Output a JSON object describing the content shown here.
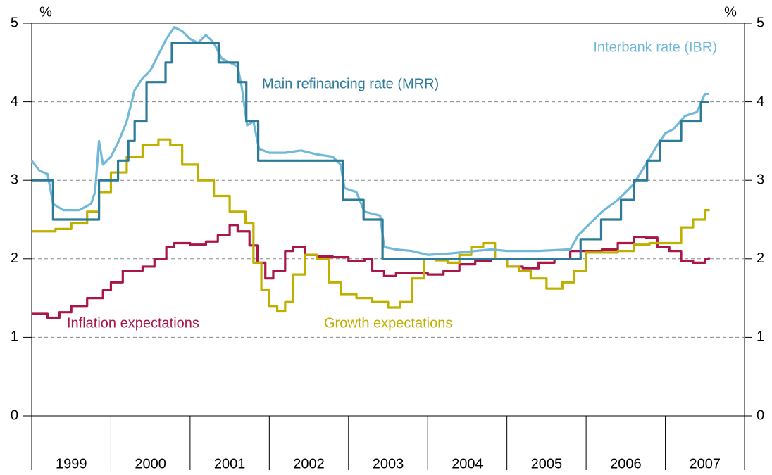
{
  "chart_data": {
    "type": "line",
    "y_unit_left": "%",
    "y_unit_right": "%",
    "xlim": [
      1999,
      2008
    ],
    "xticks": [
      1999,
      2000,
      2001,
      2002,
      2003,
      2004,
      2005,
      2006,
      2007,
      2008
    ],
    "x_band_labels": [
      "1999",
      "2000",
      "2001",
      "2002",
      "2003",
      "2004",
      "2005",
      "2006",
      "2007"
    ],
    "ylim": [
      0,
      5
    ],
    "yticks": [
      0,
      1,
      2,
      3,
      4,
      5
    ],
    "y2lim": [
      0,
      5
    ],
    "y2ticks": [
      0,
      1,
      2,
      3,
      4,
      5
    ],
    "grid": true,
    "series": [
      {
        "name": "Inflation expectations",
        "color": "#a8174a",
        "step": true,
        "x": [
          1999.0,
          1999.2,
          1999.35,
          1999.5,
          1999.7,
          1999.9,
          2000.0,
          2000.15,
          2000.4,
          2000.55,
          2000.7,
          2000.8,
          2001.0,
          2001.2,
          2001.35,
          2001.5,
          2001.6,
          2001.75,
          2001.85,
          2001.95,
          2002.05,
          2002.2,
          2002.3,
          2002.45,
          2002.6,
          2002.8,
          2003.0,
          2003.2,
          2003.3,
          2003.45,
          2003.6,
          2003.8,
          2004.0,
          2004.2,
          2004.4,
          2004.6,
          2004.8,
          2005.0,
          2005.2,
          2005.4,
          2005.6,
          2005.8,
          2006.0,
          2006.2,
          2006.4,
          2006.6,
          2006.75,
          2006.9,
          2007.05,
          2007.2,
          2007.35,
          2007.5,
          2007.55
        ],
        "values": [
          1.3,
          1.25,
          1.32,
          1.4,
          1.5,
          1.6,
          1.7,
          1.85,
          1.9,
          2.0,
          2.15,
          2.2,
          2.18,
          2.22,
          2.3,
          2.43,
          2.35,
          2.17,
          1.95,
          1.75,
          1.85,
          2.1,
          2.15,
          2.05,
          2.03,
          2.02,
          1.97,
          2.0,
          1.85,
          1.78,
          1.82,
          1.82,
          1.8,
          1.85,
          1.93,
          1.97,
          2.0,
          1.9,
          1.88,
          1.95,
          2.0,
          2.1,
          2.1,
          2.12,
          2.2,
          2.28,
          2.27,
          2.15,
          2.1,
          1.97,
          1.95,
          2.0,
          2.02
        ]
      },
      {
        "name": "Growth expectations",
        "color": "#bfb000",
        "step": true,
        "x": [
          1999.0,
          1999.3,
          1999.5,
          1999.7,
          1999.85,
          2000.0,
          2000.2,
          2000.4,
          2000.6,
          2000.75,
          2000.9,
          2001.1,
          2001.3,
          2001.5,
          2001.7,
          2001.8,
          2001.9,
          2002.0,
          2002.1,
          2002.2,
          2002.3,
          2002.45,
          2002.6,
          2002.75,
          2002.9,
          2003.1,
          2003.3,
          2003.5,
          2003.65,
          2003.8,
          2003.95,
          2004.1,
          2004.25,
          2004.4,
          2004.55,
          2004.7,
          2004.85,
          2005.0,
          2005.15,
          2005.3,
          2005.5,
          2005.7,
          2005.85,
          2006.0,
          2006.2,
          2006.4,
          2006.6,
          2006.8,
          2007.0,
          2007.2,
          2007.35,
          2007.5,
          2007.55
        ],
        "values": [
          2.35,
          2.38,
          2.45,
          2.6,
          2.85,
          3.1,
          3.3,
          3.45,
          3.52,
          3.45,
          3.2,
          3.0,
          2.8,
          2.6,
          2.45,
          1.95,
          1.6,
          1.4,
          1.33,
          1.45,
          1.8,
          2.05,
          2.0,
          1.7,
          1.55,
          1.5,
          1.45,
          1.38,
          1.45,
          1.75,
          2.0,
          1.98,
          1.95,
          2.05,
          2.15,
          2.2,
          2.0,
          1.9,
          1.85,
          1.75,
          1.62,
          1.7,
          1.85,
          2.08,
          2.08,
          2.1,
          2.18,
          2.2,
          2.2,
          2.4,
          2.5,
          2.62,
          2.63
        ]
      },
      {
        "name": "Interbank rate (IBR)",
        "color": "#72b9d9",
        "step": false,
        "x": [
          1999.0,
          1999.1,
          1999.2,
          1999.27,
          1999.4,
          1999.6,
          1999.75,
          1999.8,
          1999.85,
          1999.9,
          2000.0,
          2000.1,
          2000.2,
          2000.3,
          2000.4,
          2000.5,
          2000.6,
          2000.7,
          2000.8,
          2000.9,
          2001.0,
          2001.1,
          2001.2,
          2001.3,
          2001.4,
          2001.5,
          2001.6,
          2001.65,
          2001.72,
          2001.8,
          2001.87,
          2002.0,
          2002.2,
          2002.4,
          2002.6,
          2002.8,
          2002.9,
          2002.95,
          2003.1,
          2003.2,
          2003.4,
          2003.45,
          2003.6,
          2003.8,
          2004.0,
          2004.3,
          2004.6,
          2004.8,
          2005.0,
          2005.4,
          2005.8,
          2005.9,
          2006.0,
          2006.2,
          2006.4,
          2006.6,
          2006.75,
          2006.9,
          2007.0,
          2007.1,
          2007.25,
          2007.4,
          2007.5,
          2007.55
        ],
        "values": [
          3.25,
          3.12,
          3.08,
          2.7,
          2.62,
          2.62,
          2.7,
          2.85,
          3.5,
          3.2,
          3.3,
          3.5,
          3.75,
          4.15,
          4.3,
          4.4,
          4.6,
          4.8,
          4.95,
          4.9,
          4.8,
          4.75,
          4.85,
          4.75,
          4.55,
          4.5,
          4.45,
          4.2,
          3.7,
          3.75,
          3.4,
          3.35,
          3.35,
          3.38,
          3.33,
          3.3,
          3.2,
          2.9,
          2.85,
          2.6,
          2.55,
          2.15,
          2.12,
          2.1,
          2.05,
          2.07,
          2.1,
          2.12,
          2.1,
          2.1,
          2.12,
          2.3,
          2.4,
          2.6,
          2.75,
          2.95,
          3.2,
          3.45,
          3.6,
          3.65,
          3.82,
          3.87,
          4.1,
          4.1
        ]
      },
      {
        "name": "Main refinancing rate (MRR)",
        "color": "#2d7b98",
        "step": true,
        "x": [
          1999.0,
          1999.27,
          1999.85,
          2000.09,
          2000.22,
          2000.3,
          2000.45,
          2000.69,
          2000.77,
          2001.36,
          2001.61,
          2001.71,
          2001.86,
          2002.93,
          2003.19,
          2003.43,
          2005.93,
          2006.19,
          2006.44,
          2006.6,
          2006.77,
          2006.93,
          2007.2,
          2007.45,
          2007.55
        ],
        "values": [
          3,
          2.5,
          3,
          3.25,
          3.5,
          3.75,
          4.25,
          4.5,
          4.75,
          4.5,
          4.25,
          3.75,
          3.25,
          2.75,
          2.5,
          2.0,
          2.25,
          2.5,
          2.75,
          3,
          3.25,
          3.5,
          3.75,
          4.0,
          4.0
        ]
      }
    ]
  }
}
